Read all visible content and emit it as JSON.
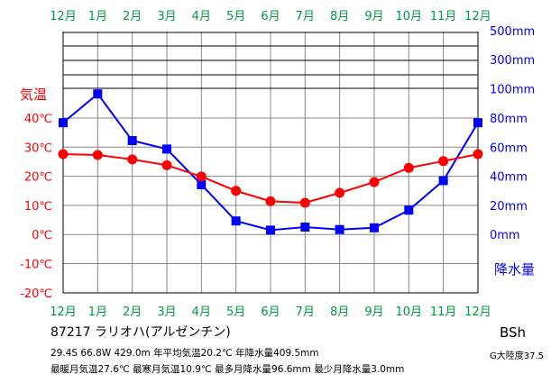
{
  "chart_data": {
    "type": "line",
    "x_tick_labels": [
      "12月",
      "1月",
      "2月",
      "3月",
      "4月",
      "5月",
      "6月",
      "7月",
      "8月",
      "9月",
      "10月",
      "11月",
      "12月"
    ],
    "series": [
      {
        "name": "気温",
        "unit": "℃",
        "color": "#ff0000",
        "values": [
          27.6,
          27.3,
          25.8,
          23.8,
          19.9,
          15.0,
          11.4,
          10.9,
          14.3,
          18.0,
          22.9,
          25.2,
          27.6
        ]
      },
      {
        "name": "降水量",
        "unit": "mm",
        "color": "#0000ff",
        "values": [
          76.8,
          96.6,
          64.5,
          58.7,
          34.2,
          9.3,
          3.0,
          5.1,
          3.4,
          4.6,
          16.7,
          37.0,
          76.8
        ]
      }
    ],
    "temperature_axis": {
      "label": "気温",
      "ticks": [
        "40℃",
        "30℃",
        "20℃",
        "10℃",
        "0℃",
        "-10℃",
        "-20℃"
      ],
      "range": [
        -20,
        40
      ],
      "color": "#ff0000"
    },
    "precipitation_axis": {
      "label": "降水量",
      "ticks_linear": [
        "100mm",
        "80mm",
        "60mm",
        "40mm",
        "20mm",
        "0mm"
      ],
      "ticks_compressed": [
        "500mm",
        "300mm"
      ],
      "range": [
        0,
        100
      ],
      "color": "#0000ff"
    },
    "grid": true,
    "x_label_color": "#009944",
    "frame_color": "#000000",
    "grid_color": "#888888"
  },
  "station": "87217 ラリオハ(アルゼンチン)",
  "stats_line1": "29.4S 66.8W 429.0m 年平均気温20.2℃ 年降水量409.5mm",
  "stats_line2": "最暖月気温27.6℃ 最寒月気温10.9℃ 最多月降水量96.6mm 最少月降水量3.0mm",
  "climate_class": "BSh",
  "climate_index": "G大陸度37.5"
}
